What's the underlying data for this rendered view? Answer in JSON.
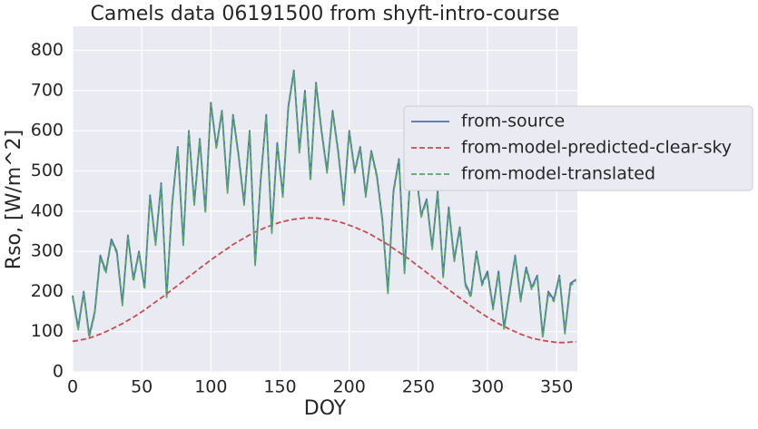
{
  "chart_data": {
    "type": "line",
    "title": "Camels data 06191500 from shyft-intro-course",
    "xlabel": "DOY",
    "ylabel": "Rso, [W/m^2]",
    "xlim": [
      0,
      365
    ],
    "ylim": [
      0,
      860
    ],
    "xticks": [
      0,
      50,
      100,
      150,
      200,
      250,
      300,
      350
    ],
    "yticks": [
      0,
      100,
      200,
      300,
      400,
      500,
      600,
      700,
      800
    ],
    "grid": true,
    "x": [
      0,
      4,
      8,
      12,
      16,
      20,
      24,
      28,
      32,
      36,
      40,
      44,
      48,
      52,
      56,
      60,
      64,
      68,
      72,
      76,
      80,
      84,
      88,
      92,
      96,
      100,
      104,
      108,
      112,
      116,
      120,
      124,
      128,
      132,
      136,
      140,
      144,
      148,
      152,
      156,
      160,
      164,
      168,
      172,
      176,
      180,
      184,
      188,
      192,
      196,
      200,
      204,
      208,
      212,
      216,
      220,
      224,
      228,
      232,
      236,
      240,
      244,
      248,
      252,
      256,
      260,
      264,
      268,
      272,
      276,
      280,
      284,
      288,
      292,
      296,
      300,
      304,
      308,
      312,
      316,
      320,
      324,
      328,
      332,
      336,
      340,
      344,
      348,
      352,
      356,
      360,
      364
    ],
    "series": [
      {
        "name": "from-source",
        "color": "#4c72b0",
        "dash": false,
        "values": [
          190,
          110,
          200,
          90,
          150,
          290,
          250,
          330,
          300,
          170,
          340,
          230,
          300,
          210,
          440,
          320,
          470,
          190,
          420,
          560,
          320,
          600,
          420,
          580,
          400,
          670,
          560,
          650,
          450,
          640,
          540,
          420,
          600,
          270,
          480,
          640,
          350,
          570,
          440,
          660,
          750,
          550,
          700,
          480,
          720,
          600,
          500,
          650,
          550,
          420,
          600,
          500,
          560,
          440,
          550,
          490,
          380,
          200,
          450,
          530,
          250,
          480,
          510,
          390,
          430,
          310,
          450,
          240,
          410,
          280,
          360,
          220,
          190,
          300,
          220,
          250,
          160,
          250,
          110,
          200,
          290,
          180,
          260,
          210,
          240,
          90,
          200,
          180,
          240,
          100,
          220,
          230
        ]
      },
      {
        "name": "from-model-predicted-clear-sky",
        "color": "#c44e52",
        "dash": true,
        "values": [
          76,
          78,
          81,
          84,
          89,
          94,
          100,
          106,
          113,
          120,
          128,
          136,
          145,
          154,
          164,
          174,
          184,
          194,
          205,
          215,
          226,
          237,
          247,
          258,
          268,
          279,
          288,
          298,
          307,
          317,
          325,
          333,
          341,
          348,
          354,
          360,
          365,
          370,
          374,
          377,
          380,
          381,
          383,
          383,
          383,
          381,
          380,
          377,
          374,
          370,
          365,
          360,
          354,
          348,
          341,
          333,
          325,
          317,
          307,
          298,
          288,
          279,
          268,
          258,
          247,
          237,
          226,
          215,
          205,
          194,
          184,
          174,
          164,
          154,
          145,
          136,
          128,
          120,
          113,
          106,
          100,
          94,
          89,
          84,
          81,
          78,
          76,
          74,
          73,
          73,
          74,
          75
        ]
      },
      {
        "name": "from-model-translated",
        "color": "#55a868",
        "dash": true,
        "values": [
          185,
          105,
          195,
          85,
          145,
          285,
          245,
          325,
          295,
          165,
          335,
          225,
          295,
          205,
          435,
          315,
          465,
          185,
          415,
          555,
          315,
          595,
          415,
          575,
          395,
          665,
          555,
          645,
          445,
          635,
          535,
          415,
          595,
          265,
          475,
          635,
          345,
          565,
          435,
          655,
          745,
          545,
          695,
          475,
          715,
          595,
          495,
          645,
          545,
          415,
          595,
          495,
          555,
          435,
          545,
          485,
          375,
          195,
          445,
          525,
          245,
          475,
          505,
          385,
          425,
          305,
          445,
          235,
          405,
          275,
          355,
          215,
          185,
          295,
          215,
          245,
          155,
          245,
          105,
          195,
          285,
          175,
          255,
          205,
          235,
          85,
          195,
          175,
          235,
          95,
          215,
          225
        ]
      }
    ]
  }
}
